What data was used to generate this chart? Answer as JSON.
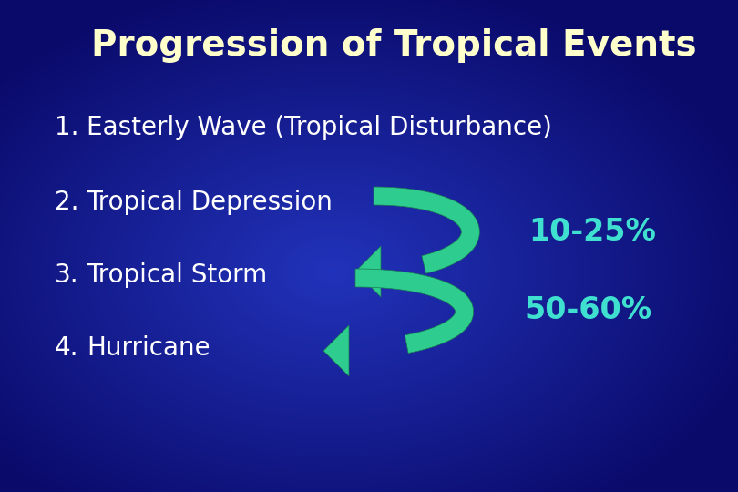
{
  "title": "Progression of Tropical Events",
  "title_color": "#FFFFCC",
  "title_fontsize": 28,
  "items": [
    {
      "num": "1.",
      "text": "Easterly Wave (Tropical Disturbance)"
    },
    {
      "num": "2.",
      "text": "Tropical Depression"
    },
    {
      "num": "3.",
      "text": "Tropical Storm"
    },
    {
      "num": "4.",
      "text": "Hurricane"
    }
  ],
  "item_text_color": "#FFFFFF",
  "item_fontsize": 20,
  "pct1_text": "10-25%",
  "pct2_text": "50-60%",
  "pct_color": "#40E0D0",
  "pct_fontsize": 24,
  "arrow_color": "#2ECC8E",
  "arrow_dark": "#1A7A50",
  "bg_top_left": "#1a1a8c",
  "bg_center": "#2233cc",
  "bg_bottom_right": "#3355ee"
}
